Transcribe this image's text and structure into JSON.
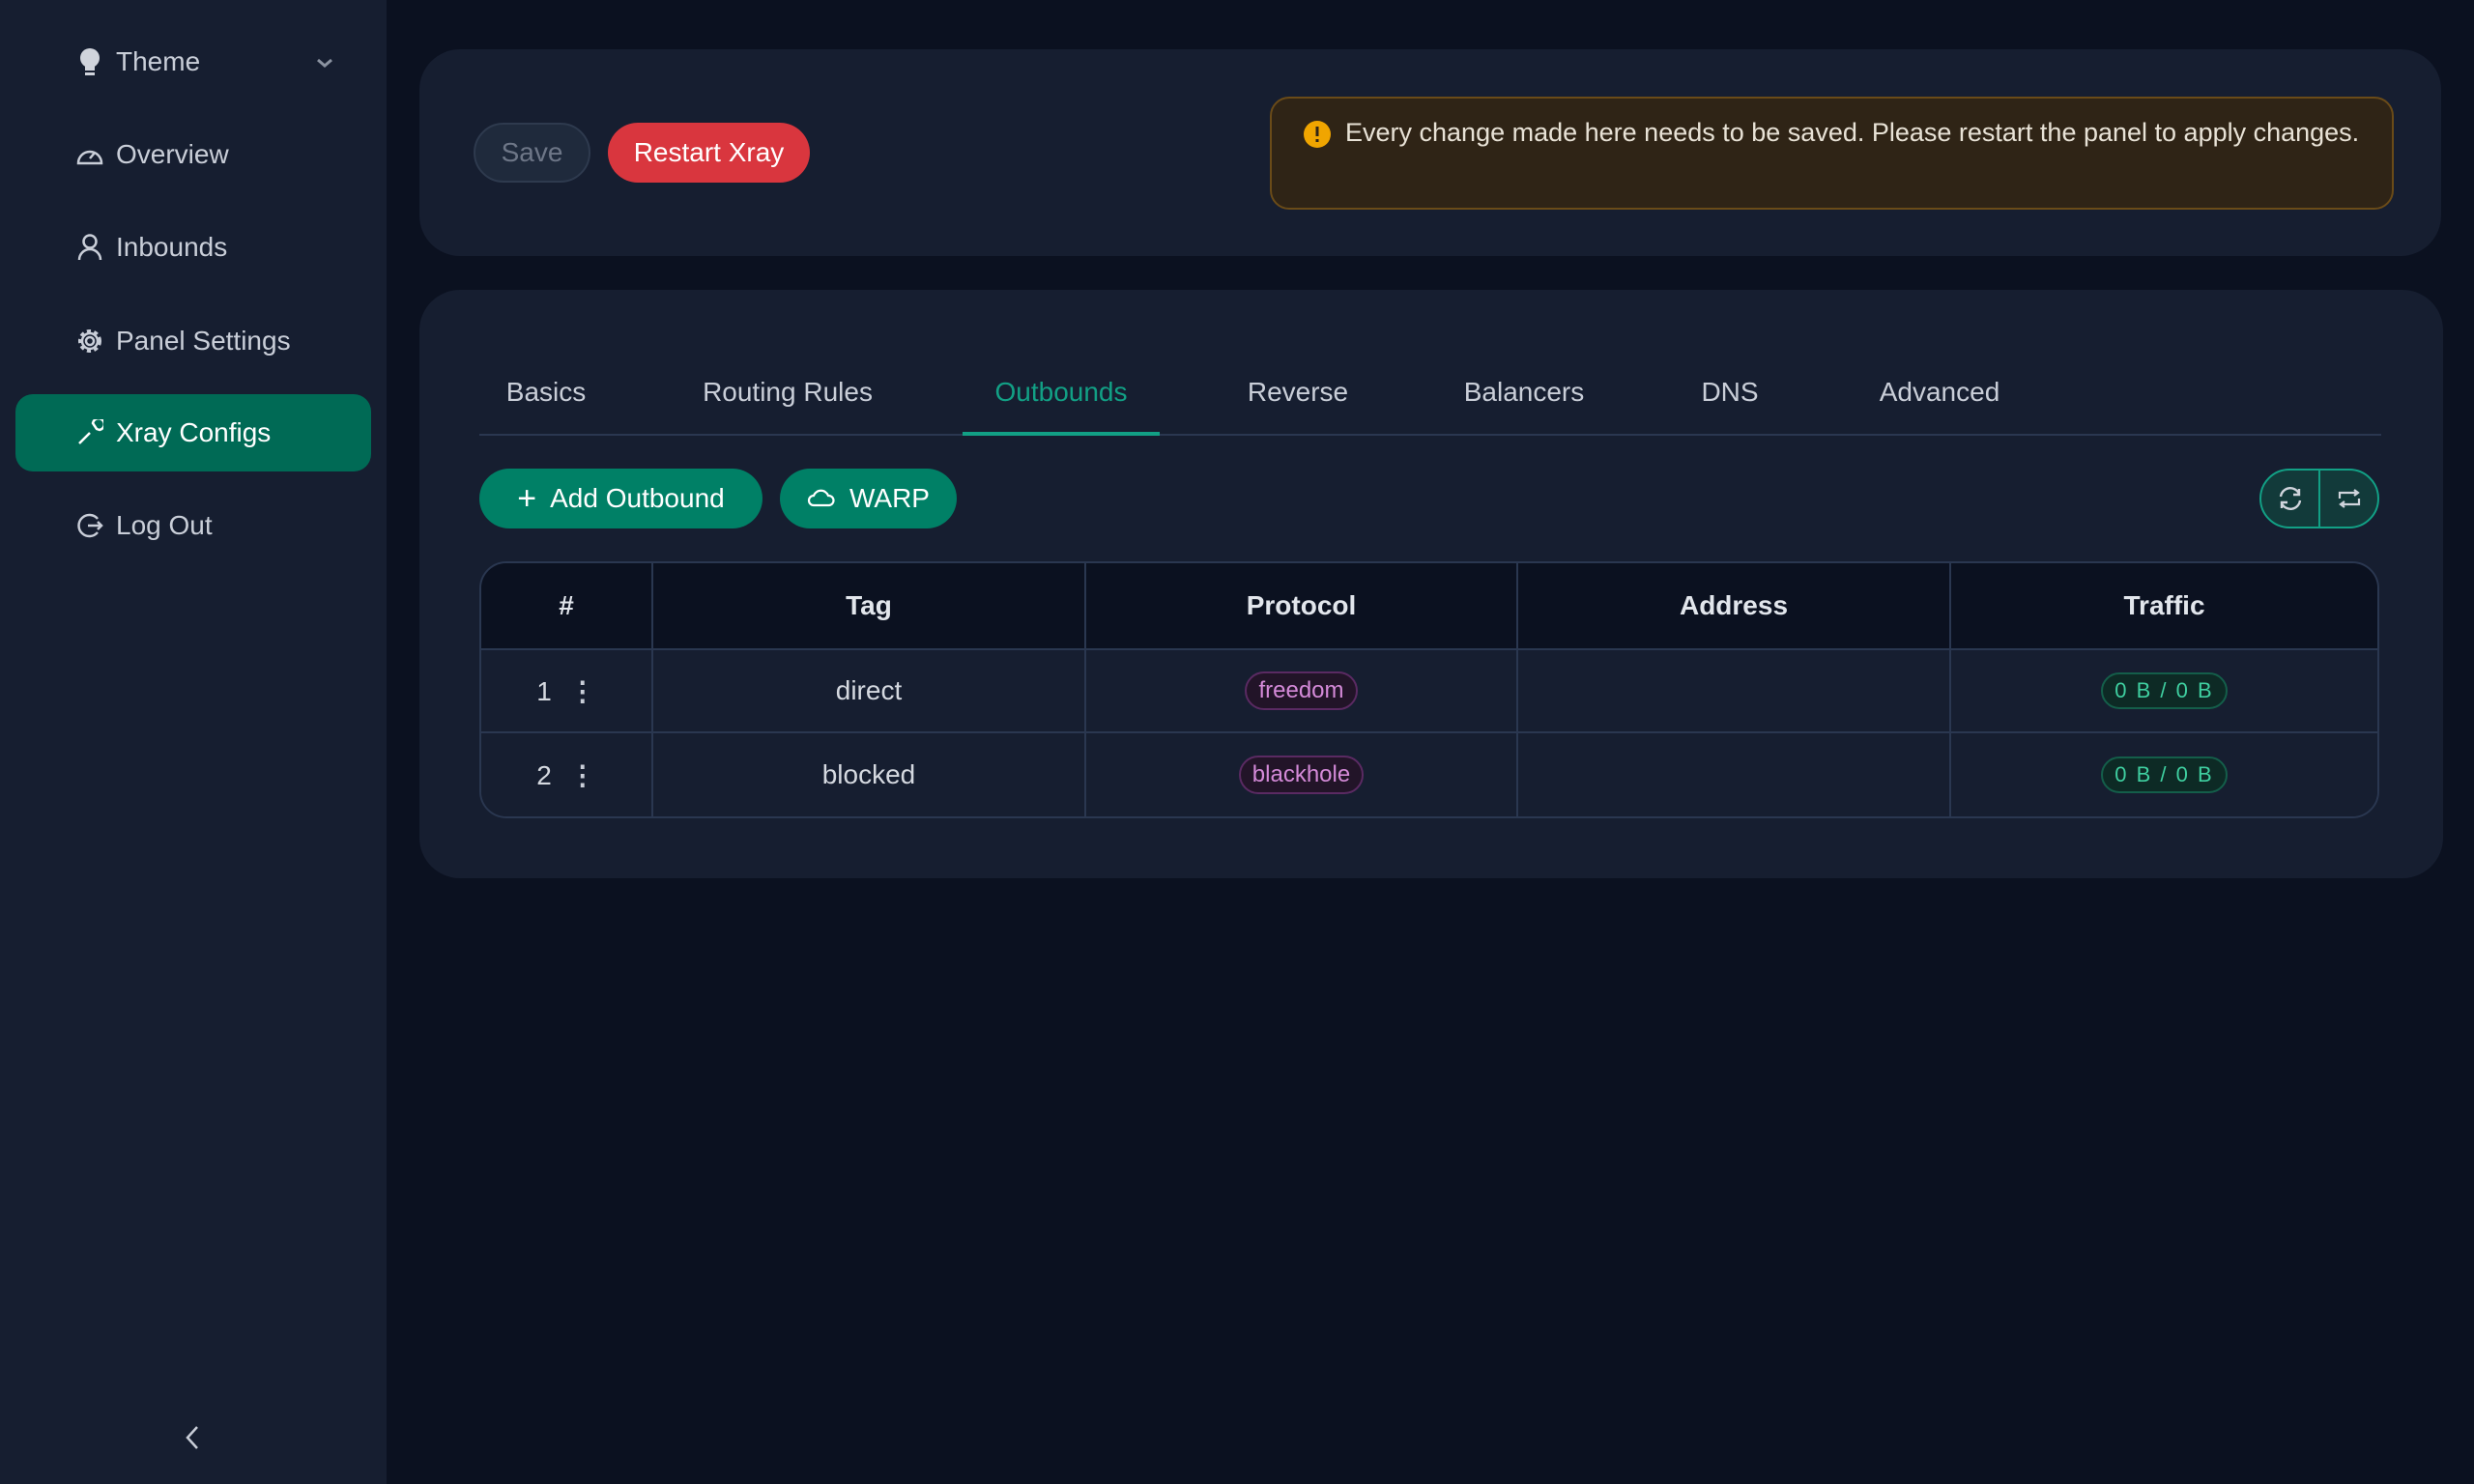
{
  "sidebar": {
    "items": [
      {
        "label": "Theme",
        "icon": "bulb-icon"
      },
      {
        "label": "Overview",
        "icon": "dashboard-icon"
      },
      {
        "label": "Inbounds",
        "icon": "user-icon"
      },
      {
        "label": "Panel Settings",
        "icon": "gear-icon"
      },
      {
        "label": "Xray Configs",
        "icon": "wrench-icon",
        "active": true
      },
      {
        "label": "Log Out",
        "icon": "logout-icon"
      }
    ],
    "collapse_icon": "chevron-left-icon"
  },
  "toolbar": {
    "save_label": "Save",
    "restart_label": "Restart Xray",
    "alert_text": "Every change made here needs to be saved. Please restart the panel to apply changes."
  },
  "tabs": [
    "Basics",
    "Routing Rules",
    "Outbounds",
    "Reverse",
    "Balancers",
    "DNS",
    "Advanced"
  ],
  "active_tab": "Outbounds",
  "actions": {
    "add_label": "Add Outbound",
    "warp_label": "WARP"
  },
  "table": {
    "headers": [
      "#",
      "Tag",
      "Protocol",
      "Address",
      "Traffic"
    ],
    "rows": [
      {
        "num": "1",
        "tag": "direct",
        "protocol": "freedom",
        "address": "",
        "traffic": "0 B / 0 B"
      },
      {
        "num": "2",
        "tag": "blocked",
        "protocol": "blackhole",
        "address": "",
        "traffic": "0 B / 0 B"
      }
    ]
  },
  "colors": {
    "accent": "#008066",
    "danger": "#d9363e",
    "warning": "#f0a500"
  }
}
